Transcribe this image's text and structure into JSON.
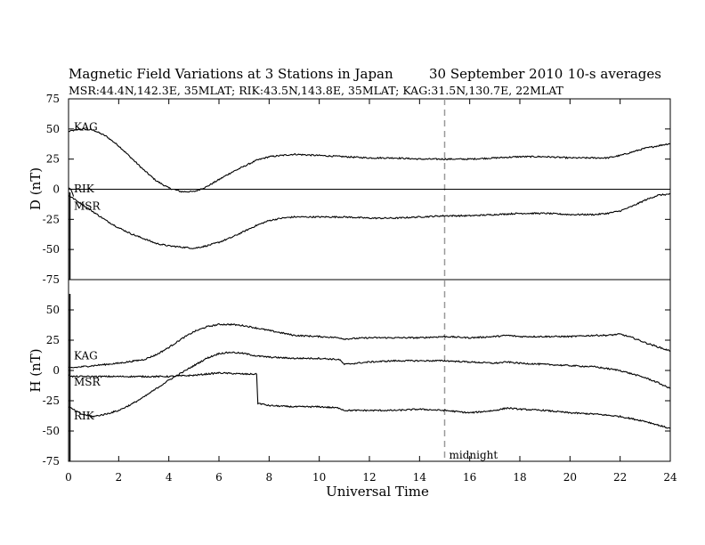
{
  "chart_data": {
    "type": "line",
    "title": "Magnetic Field Variations at 3 Stations in Japan",
    "date": "30 September 2010",
    "averaging": "10-s averages",
    "subtitle": "MSR:44.4N,142.3E, 35MLAT;  RIK:43.5N,143.8E, 35MLAT;  KAG:31.5N,130.7E, 22MLAT",
    "xlabel": "Universal Time",
    "xlim": [
      0,
      24
    ],
    "xticks": [
      0,
      2,
      4,
      6,
      8,
      10,
      12,
      14,
      16,
      18,
      20,
      22,
      24
    ],
    "midnight_ut": 15,
    "midnight_label": "midnight",
    "grid": false,
    "panels": [
      {
        "id": "D",
        "ylabel": "D (nT)",
        "ylim": [
          -75,
          75
        ],
        "yticks": [
          75,
          50,
          25,
          0,
          -25,
          -50,
          -75
        ],
        "zero_line": true,
        "series": [
          {
            "name": "KAG",
            "x": [
              0,
              0.5,
              1,
              1.5,
              2,
              2.5,
              3,
              3.5,
              4,
              4.5,
              5,
              5.5,
              6,
              6.5,
              7,
              7.5,
              8,
              8.5,
              9,
              10,
              11,
              12,
              13,
              14,
              15,
              16,
              17,
              18,
              19,
              20,
              21,
              21.5,
              22,
              23,
              24
            ],
            "y": [
              48,
              50,
              49,
              44,
              36,
              26,
              16,
              7,
              1,
              -2,
              -2,
              2,
              8,
              14,
              19,
              24,
              27,
              28,
              29,
              28,
              27,
              26,
              26,
              25,
              25,
              25,
              26,
              27,
              27,
              26,
              26,
              26,
              28,
              34,
              38
            ]
          },
          {
            "name": "RIK",
            "x": [
              0,
              0.1,
              0.15,
              0.2
            ],
            "y": [
              1,
              0,
              -3,
              -6
            ]
          },
          {
            "name": "MSR",
            "x": [
              0,
              0.5,
              1,
              1.5,
              2,
              2.5,
              3,
              3.5,
              4,
              4.5,
              5,
              5.5,
              6,
              6.5,
              7,
              7.5,
              8,
              8.5,
              9,
              10,
              11,
              12,
              13,
              14,
              15,
              16,
              17,
              18,
              19,
              20,
              21,
              21.5,
              22,
              22.5,
              23,
              23.5,
              24
            ],
            "y": [
              -5,
              -12,
              -19,
              -26,
              -32,
              -37,
              -41,
              -45,
              -47,
              -48,
              -49,
              -47,
              -44,
              -40,
              -35,
              -30,
              -26,
              -24,
              -23,
              -23,
              -23,
              -24,
              -24,
              -23,
              -22,
              -22,
              -21,
              -20,
              -20,
              -21,
              -21,
              -20,
              -18,
              -14,
              -9,
              -5,
              -4
            ]
          }
        ]
      },
      {
        "id": "H",
        "ylabel": "H (nT)",
        "ylim": [
          -75,
          75
        ],
        "yticks": [
          50,
          25,
          0,
          -25,
          -50,
          -75
        ],
        "zero_line": false,
        "series": [
          {
            "name": "KAG",
            "x": [
              0,
              1,
              2,
              3,
              3.5,
              4,
              4.5,
              5,
              5.5,
              6,
              6.5,
              7,
              7.5,
              8,
              8.5,
              9,
              10,
              10.8,
              11,
              12,
              13,
              14,
              15,
              16,
              17,
              17.5,
              18,
              19,
              20,
              21,
              21.5,
              22,
              22.5,
              23,
              24
            ],
            "y": [
              2,
              4,
              6,
              9,
              13,
              19,
              26,
              32,
              36,
              38,
              38,
              37,
              35,
              33,
              31,
              29,
              28,
              27,
              26,
              27,
              27,
              27,
              28,
              27,
              28,
              29,
              28,
              28,
              28,
              29,
              29,
              30,
              27,
              23,
              16
            ]
          },
          {
            "name": "MSR",
            "x": [
              0,
              0.1,
              1,
              2,
              3,
              4,
              5,
              6,
              7,
              7.5,
              7.55,
              8,
              9,
              10,
              10.8,
              11,
              12,
              13,
              14,
              15,
              16,
              17,
              17.5,
              18,
              19,
              20,
              21,
              22,
              23,
              24
            ],
            "y": [
              -3,
              -5,
              -5,
              -5,
              -5,
              -5,
              -4,
              -2,
              -3,
              -3,
              -27,
              -29,
              -30,
              -30,
              -31,
              -33,
              -33,
              -33,
              -32,
              -33,
              -35,
              -33,
              -31,
              -32,
              -33,
              -35,
              -36,
              -38,
              -42,
              -48
            ]
          },
          {
            "name": "RIK",
            "x": [
              0,
              0.5,
              1,
              1.5,
              2,
              2.5,
              3,
              3.5,
              4,
              4.5,
              5,
              5.5,
              6,
              6.5,
              7,
              7.5,
              8,
              9,
              10,
              10.8,
              11,
              12,
              13,
              14,
              15,
              16,
              17,
              17.5,
              18,
              19,
              20,
              21,
              22,
              22.5,
              23,
              23.5,
              24
            ],
            "y": [
              -30,
              -36,
              -38,
              -36,
              -33,
              -28,
              -22,
              -15,
              -8,
              -2,
              4,
              10,
              14,
              15,
              14,
              12,
              11,
              10,
              10,
              9,
              5,
              7,
              8,
              8,
              8,
              7,
              6,
              7,
              6,
              5,
              4,
              3,
              0,
              -3,
              -6,
              -10,
              -15
            ]
          }
        ]
      }
    ]
  }
}
